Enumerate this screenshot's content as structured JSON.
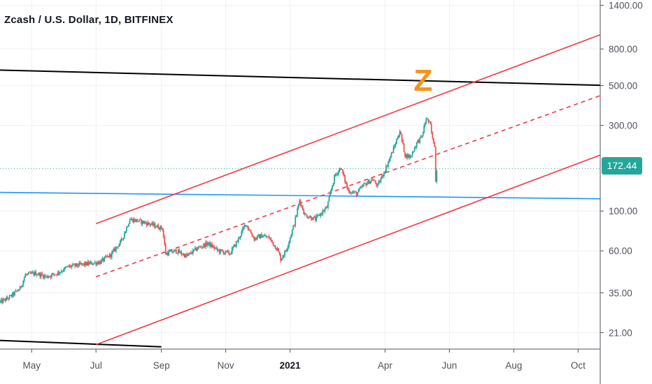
{
  "chart_title": "Zcash / U.S. Dollar, 1D, BITFINEX",
  "chart_data": {
    "type": "candlestick",
    "title": "Zcash / U.S. Dollar, 1D, BITFINEX",
    "y_scale": "log",
    "ylim": [
      17,
      1500
    ],
    "xlim": [
      "2020-04-01",
      "2021-10-22"
    ],
    "y_ticks": [
      "1400.00",
      "800.00",
      "500.00",
      "300.00",
      "100.00",
      "60.00",
      "35.00",
      "21.00"
    ],
    "x_ticks": [
      {
        "date": "2020-05-01",
        "label": "May"
      },
      {
        "date": "2020-07-01",
        "label": "Jul"
      },
      {
        "date": "2020-09-01",
        "label": "Sep"
      },
      {
        "date": "2020-11-01",
        "label": "Nov"
      },
      {
        "date": "2021-01-01",
        "label": "2021",
        "bold": true
      },
      {
        "date": "2021-04-01",
        "label": "Apr"
      },
      {
        "date": "2021-06-01",
        "label": "Jun"
      },
      {
        "date": "2021-08-01",
        "label": "Aug"
      },
      {
        "date": "2021-10-01",
        "label": "Oct"
      }
    ],
    "last_price": "172.44",
    "last_price_value": 172.44,
    "annotation": {
      "text": "Z",
      "date": "2021-05-07",
      "price": 520,
      "color": "#f7931a"
    },
    "colors": {
      "up": "#26a69a",
      "down": "#ef5350",
      "channel": "#f23645",
      "resistance": "#000000",
      "support": "#2196f3",
      "price_line": "#26a69a"
    },
    "price_path": [
      {
        "date": "2020-04-01",
        "price": 31
      },
      {
        "date": "2020-04-10",
        "price": 33
      },
      {
        "date": "2020-04-20",
        "price": 37
      },
      {
        "date": "2020-04-25",
        "price": 44
      },
      {
        "date": "2020-05-05",
        "price": 45
      },
      {
        "date": "2020-05-15",
        "price": 43
      },
      {
        "date": "2020-05-25",
        "price": 45
      },
      {
        "date": "2020-06-05",
        "price": 49
      },
      {
        "date": "2020-06-15",
        "price": 50
      },
      {
        "date": "2020-06-25",
        "price": 51
      },
      {
        "date": "2020-07-05",
        "price": 52
      },
      {
        "date": "2020-07-15",
        "price": 57
      },
      {
        "date": "2020-07-25",
        "price": 68
      },
      {
        "date": "2020-08-02",
        "price": 90
      },
      {
        "date": "2020-08-10",
        "price": 88
      },
      {
        "date": "2020-08-20",
        "price": 85
      },
      {
        "date": "2020-09-02",
        "price": 80
      },
      {
        "date": "2020-09-05",
        "price": 58
      },
      {
        "date": "2020-09-15",
        "price": 60
      },
      {
        "date": "2020-09-25",
        "price": 56
      },
      {
        "date": "2020-10-05",
        "price": 62
      },
      {
        "date": "2020-10-15",
        "price": 66
      },
      {
        "date": "2020-10-25",
        "price": 60
      },
      {
        "date": "2020-11-05",
        "price": 58
      },
      {
        "date": "2020-11-12",
        "price": 68
      },
      {
        "date": "2020-11-20",
        "price": 85
      },
      {
        "date": "2020-11-28",
        "price": 70
      },
      {
        "date": "2020-12-05",
        "price": 73
      },
      {
        "date": "2020-12-12",
        "price": 71
      },
      {
        "date": "2020-12-20",
        "price": 61
      },
      {
        "date": "2020-12-23",
        "price": 54
      },
      {
        "date": "2020-12-28",
        "price": 60
      },
      {
        "date": "2021-01-05",
        "price": 85
      },
      {
        "date": "2021-01-10",
        "price": 115
      },
      {
        "date": "2021-01-15",
        "price": 95
      },
      {
        "date": "2021-01-25",
        "price": 90
      },
      {
        "date": "2021-02-05",
        "price": 105
      },
      {
        "date": "2021-02-12",
        "price": 155
      },
      {
        "date": "2021-02-18",
        "price": 175
      },
      {
        "date": "2021-02-25",
        "price": 130
      },
      {
        "date": "2021-03-05",
        "price": 125
      },
      {
        "date": "2021-03-12",
        "price": 140
      },
      {
        "date": "2021-03-20",
        "price": 150
      },
      {
        "date": "2021-03-25",
        "price": 138
      },
      {
        "date": "2021-04-02",
        "price": 175
      },
      {
        "date": "2021-04-10",
        "price": 230
      },
      {
        "date": "2021-04-15",
        "price": 280
      },
      {
        "date": "2021-04-20",
        "price": 205
      },
      {
        "date": "2021-04-25",
        "price": 200
      },
      {
        "date": "2021-05-01",
        "price": 240
      },
      {
        "date": "2021-05-06",
        "price": 260
      },
      {
        "date": "2021-05-10",
        "price": 330
      },
      {
        "date": "2021-05-14",
        "price": 300
      },
      {
        "date": "2021-05-16",
        "price": 250
      },
      {
        "date": "2021-05-18",
        "price": 235
      },
      {
        "date": "2021-05-19",
        "price": 145
      },
      {
        "date": "2021-05-20",
        "price": 172
      }
    ],
    "drawings": {
      "resistance_line": {
        "from": {
          "date": "2020-04-01",
          "price": 610
        },
        "to": {
          "date": "2021-10-22",
          "price": 502
        }
      },
      "bottom_line": {
        "from": {
          "date": "2020-04-01",
          "price": 19
        },
        "to": {
          "date": "2020-09-01",
          "price": 17.5
        }
      },
      "support_line": {
        "from": {
          "date": "2020-04-01",
          "price": 127
        },
        "to": {
          "date": "2021-10-22",
          "price": 117
        }
      },
      "channel_upper": {
        "from": {
          "date": "2020-07-01",
          "price": 85
        },
        "to": {
          "date": "2021-10-22",
          "price": 960
        }
      },
      "channel_mid": {
        "from": {
          "date": "2020-07-01",
          "price": 43
        },
        "to": {
          "date": "2021-10-22",
          "price": 440
        }
      },
      "channel_lower": {
        "from": {
          "date": "2020-07-01",
          "price": 18
        },
        "to": {
          "date": "2021-10-22",
          "price": 205
        }
      }
    }
  }
}
